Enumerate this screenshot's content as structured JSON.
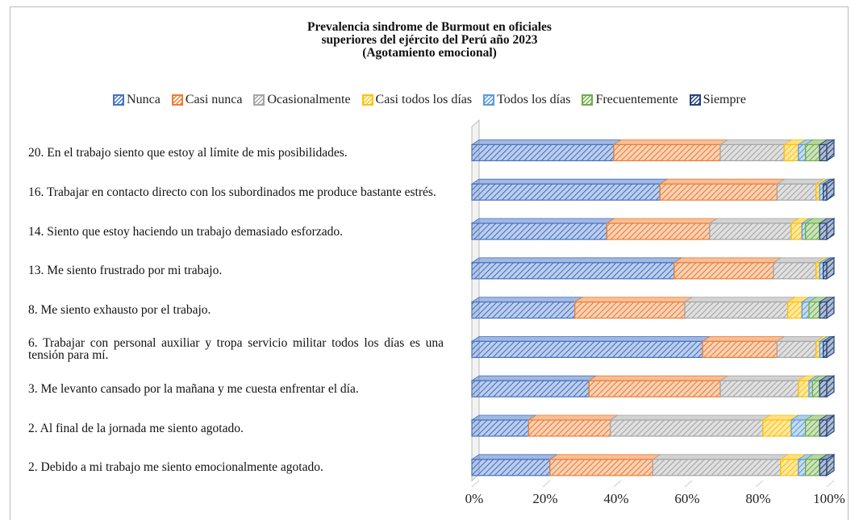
{
  "chart_data": {
    "type": "stacked_bar_horizontal",
    "title": [
      "Prevalencia sindrome de Burmout en oficiales",
      "superiores del ejército del Perú año 2023",
      "(Agotamiento emocional)"
    ],
    "categories": [
      "20. En el trabajo siento que estoy al límite de mis posibilidades.",
      "16. Trabajar en contacto directo con los subordinados me produce bastante estrés.",
      "14. Siento que estoy haciendo un trabajo demasiado esforzado.",
      "13. Me siento frustrado por mi trabajo.",
      "8. Me siento exhausto por el trabajo.",
      "6. Trabajar con personal auxiliar y tropa servicio militar todos los días es una tensión para mí.",
      "3. Me levanto cansado por la mañana y me cuesta enfrentar el día.",
      "2. Al final de la jornada me siento agotado.",
      "2. Debido a mi trabajo me siento emocionalmente agotado."
    ],
    "series": [
      {
        "name": "Nunca",
        "color": "#4472c4",
        "values": [
          40,
          53,
          38,
          57,
          29,
          65,
          33,
          16,
          22
        ]
      },
      {
        "name": "Casi nunca",
        "color": "#ed7d31",
        "values": [
          30,
          33,
          29,
          28,
          31,
          21,
          37,
          23,
          29
        ]
      },
      {
        "name": "Ocasionalmente",
        "color": "#a5a5a5",
        "values": [
          18,
          11,
          23,
          12,
          29,
          11,
          22,
          43,
          36
        ]
      },
      {
        "name": "Casi todos los días",
        "color": "#ffc000",
        "values": [
          4,
          1,
          3,
          1,
          4,
          1,
          3,
          8,
          5
        ]
      },
      {
        "name": "Todos los días",
        "color": "#5b9bd5",
        "values": [
          2,
          1,
          1,
          1,
          2,
          1,
          1,
          4,
          2
        ]
      },
      {
        "name": "Frecuentemente",
        "color": "#70ad47",
        "values": [
          4,
          0,
          4,
          0,
          3,
          0,
          2,
          4,
          4
        ]
      },
      {
        "name": "Siempre",
        "color": "#264478",
        "values": [
          2,
          1,
          2,
          1,
          2,
          1,
          2,
          2,
          2
        ]
      }
    ],
    "xlim": [
      0,
      100
    ],
    "xticks": [
      {
        "value": 0,
        "label": "0%"
      },
      {
        "value": 20,
        "label": "20%"
      },
      {
        "value": 40,
        "label": "40%"
      },
      {
        "value": 60,
        "label": "60%"
      },
      {
        "value": 80,
        "label": "80%"
      },
      {
        "value": 100,
        "label": "100%"
      }
    ]
  }
}
